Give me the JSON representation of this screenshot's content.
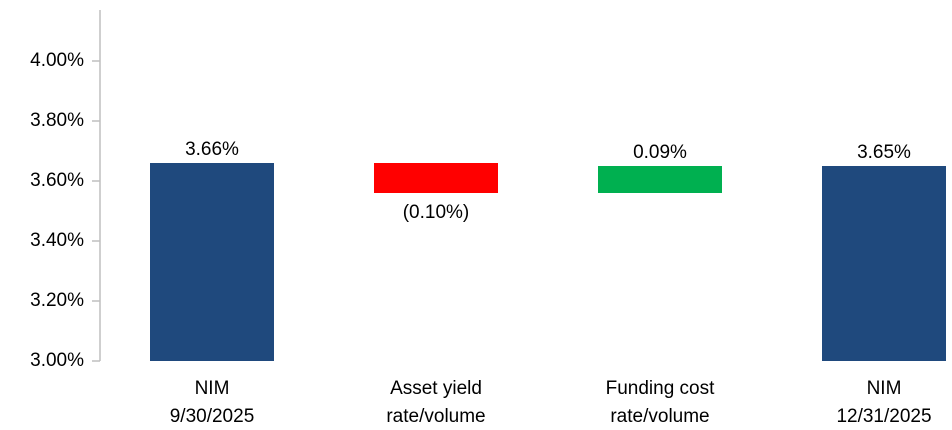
{
  "chart_data": {
    "type": "waterfall",
    "categories": [
      [
        "NIM",
        "9/30/2025"
      ],
      [
        "Asset yield",
        "rate/volume"
      ],
      [
        "Funding cost",
        "rate/volume"
      ],
      [
        "NIM",
        "12/31/2025"
      ]
    ],
    "values": [
      3.66,
      -0.1,
      0.09,
      3.65
    ],
    "value_labels": [
      "3.66%",
      "(0.10%)",
      "0.09%",
      "3.65%"
    ],
    "measure": [
      "total",
      "relative",
      "relative",
      "total"
    ],
    "colors": [
      "#1f497d",
      "#ff0000",
      "#00b050",
      "#1f497d"
    ],
    "ylim": [
      3.0,
      4.0
    ],
    "yticks": [
      {
        "value": 3.0,
        "label": "3.00%"
      },
      {
        "value": 3.2,
        "label": "3.20%"
      },
      {
        "value": 3.4,
        "label": "3.40%"
      },
      {
        "value": 3.6,
        "label": "3.60%"
      },
      {
        "value": 3.8,
        "label": "3.80%"
      },
      {
        "value": 4.0,
        "label": "4.00%"
      }
    ],
    "grid": false
  }
}
